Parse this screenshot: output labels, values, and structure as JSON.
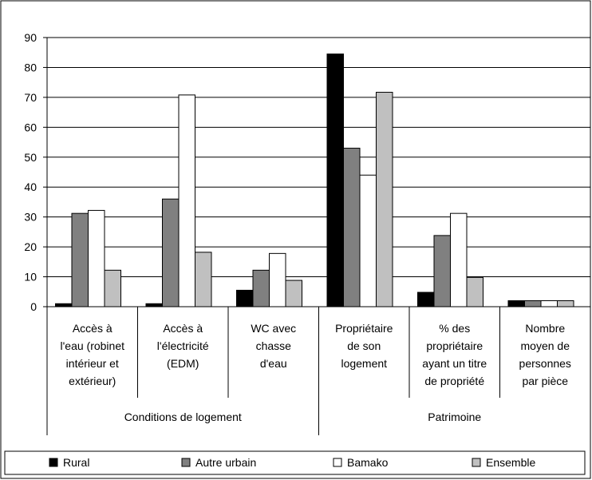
{
  "chart_data": {
    "type": "bar",
    "categories": [
      [
        "Accès à",
        "l'eau (robinet",
        "intérieur et",
        "extérieur)"
      ],
      [
        "Accès à",
        "l'électricité",
        "(EDM)"
      ],
      [
        "WC avec",
        "chasse",
        "d'eau"
      ],
      [
        "Propriétaire",
        "de son",
        "logement"
      ],
      [
        "% des",
        "propriétaire",
        "ayant un titre",
        "de propriété"
      ],
      [
        "Nombre",
        "moyen de",
        "personnes",
        "par pièce"
      ]
    ],
    "groups": [
      {
        "label": "Conditions de logement",
        "span": [
          0,
          2
        ]
      },
      {
        "label": "Patrimoine",
        "span": [
          3,
          5
        ]
      }
    ],
    "series": [
      {
        "name": "Rural",
        "color": "#000000",
        "values": [
          1,
          1,
          5.5,
          84.5,
          4.8,
          2
        ]
      },
      {
        "name": "Autre  urbain",
        "color": "#808080",
        "values": [
          31.2,
          36,
          12.2,
          53,
          23.8,
          2
        ]
      },
      {
        "name": "Bamako",
        "color": "#ffffff",
        "values": [
          32.2,
          70.8,
          17.8,
          44,
          31.2,
          2
        ]
      },
      {
        "name": "Ensemble",
        "color": "#c0c0c0",
        "values": [
          12.2,
          18.2,
          8.8,
          71.7,
          9.8,
          2
        ]
      }
    ],
    "yticks": [
      0,
      10,
      20,
      30,
      40,
      50,
      60,
      70,
      80,
      90
    ],
    "ylim": [
      0,
      90
    ],
    "grid": true,
    "legend_position": "bottom"
  }
}
